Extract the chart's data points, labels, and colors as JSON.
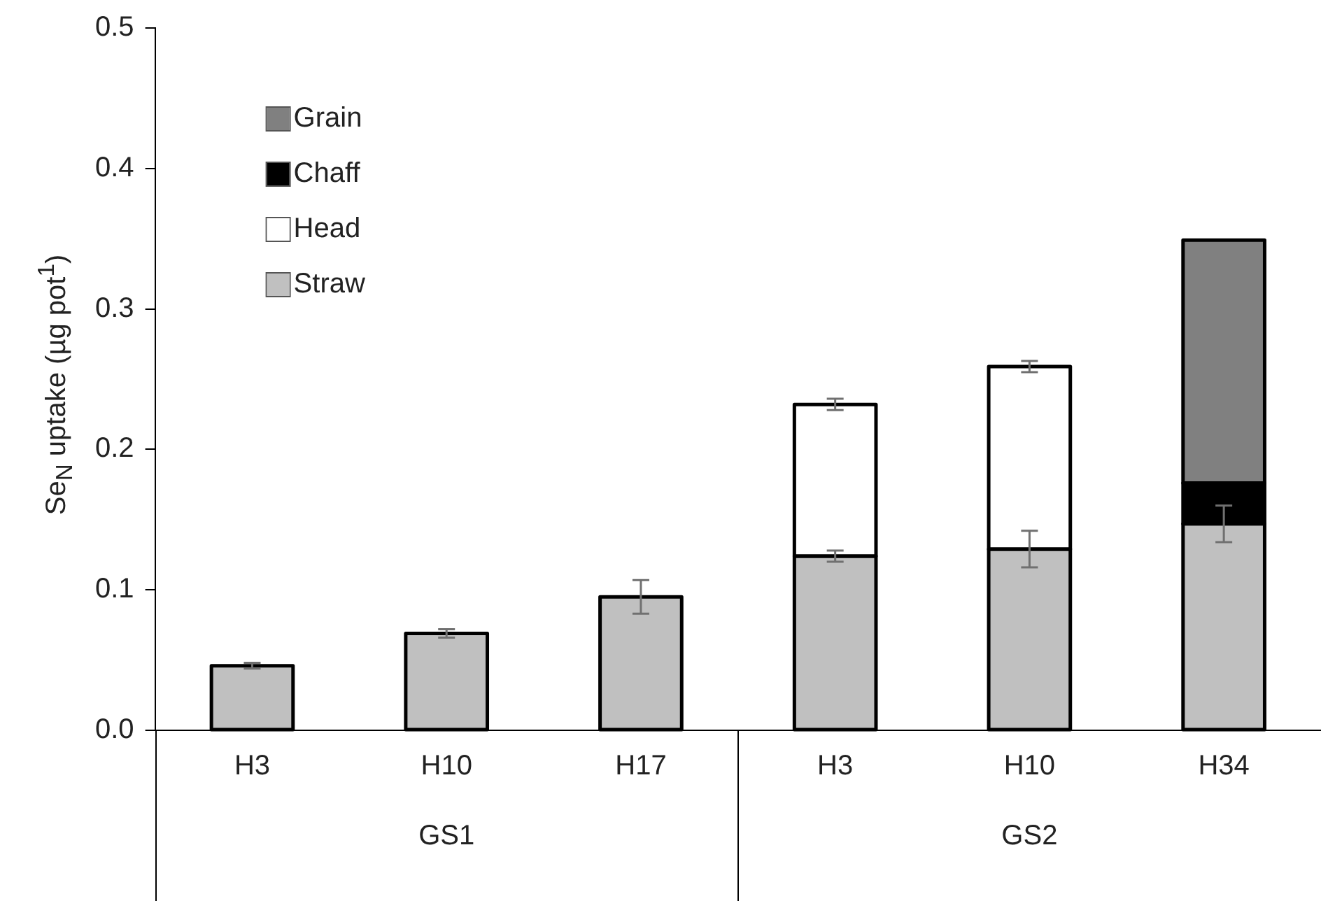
{
  "chart_data": {
    "type": "bar",
    "stacked": true,
    "ylabel": "Se$_{N}$ uptake (µg pot$^{1}$)",
    "categories": [
      "H3",
      "H10",
      "H17",
      "H3",
      "H10",
      "H34"
    ],
    "annotations": [
      "GS1",
      "GS2"
    ],
    "series": [
      {
        "name": "Straw",
        "color": "#c0c0c0",
        "values": [
          0.046,
          0.069,
          0.095,
          0.124,
          0.129,
          0.147
        ],
        "errors": [
          0.002,
          0.003,
          0.012,
          0.004,
          0.013,
          0.013
        ]
      },
      {
        "name": "Head",
        "color": "#ffffff",
        "values": [
          null,
          null,
          null,
          0.108,
          0.13,
          null
        ],
        "errors": [
          null,
          null,
          null,
          0.004,
          0.004,
          null
        ]
      },
      {
        "name": "Chaff",
        "color": "#000000",
        "values": [
          null,
          null,
          null,
          null,
          null,
          0.029
        ]
      },
      {
        "name": "Grain",
        "color": "#808080",
        "values": [
          null,
          null,
          null,
          null,
          null,
          0.173
        ]
      }
    ],
    "ylim": [
      0,
      0.5
    ],
    "yticks": [
      {
        "value": 0,
        "label": "0.0"
      },
      {
        "value": 0.1,
        "label": "0.1"
      },
      {
        "value": 0.2,
        "label": "0.2"
      },
      {
        "value": 0.3,
        "label": "0.3"
      },
      {
        "value": 0.4,
        "label": "0.4"
      },
      {
        "value": 0.5,
        "label": "0.5"
      }
    ],
    "grid": false,
    "legend": "top left"
  }
}
